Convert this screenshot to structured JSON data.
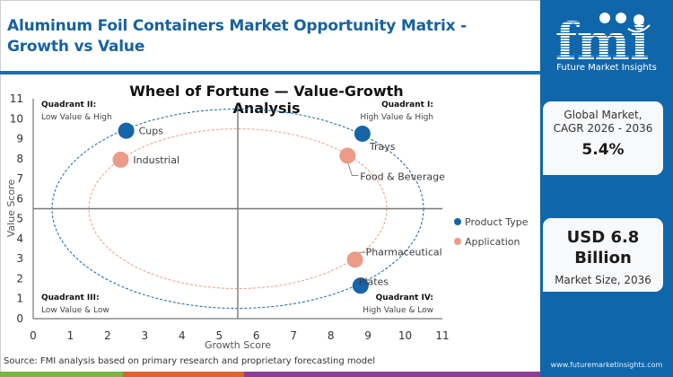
{
  "header": {
    "title": "Aluminum Foil Containers Market Opportunity Matrix - Growth vs Value"
  },
  "sidebar": {
    "logo_text": "Future Market Insights",
    "logo_mark": "fmi",
    "card1": {
      "label_line1": "Global Market,",
      "label_line2": "CAGR 2026 - 2036",
      "value": "5.4%"
    },
    "card2": {
      "value_line1": "USD 6.8",
      "value_line2": "Billion",
      "label": "Market Size, 2036"
    },
    "website": "www.futuremarketinsights.com"
  },
  "footer": {
    "source": "Source: FMI analysis based on primary research and proprietary forecasting model",
    "stripe_colors": [
      "#7cb342",
      "#e2622f",
      "#8e3d96"
    ]
  },
  "colors": {
    "product_type": "#1565a8",
    "application": "#eb9c86",
    "brand": "#0f66ab",
    "title": "#17629e"
  },
  "chart_data": {
    "type": "scatter",
    "title": "Wheel of Fortune — Value-Growth Analysis",
    "xlabel": "Growth Score",
    "ylabel": "Value Score",
    "xlim": [
      0,
      11
    ],
    "ylim": [
      0,
      11
    ],
    "x_ticks": [
      "0",
      "1",
      "2",
      "3",
      "4",
      "5",
      "6",
      "7",
      "8",
      "9",
      "10",
      "11"
    ],
    "y_ticks": [
      "0",
      "1",
      "2",
      "3",
      "4",
      "5",
      "6",
      "7",
      "8",
      "9",
      "10",
      "11"
    ],
    "grid": false,
    "dividers": {
      "x": 5.5,
      "y": 5.5
    },
    "quadrants": [
      {
        "name": "Quadrant I:",
        "desc": "High Value & High",
        "position": "top-right"
      },
      {
        "name": "Quadrant II:",
        "desc": "Low Value & High",
        "position": "top-left"
      },
      {
        "name": "Quadrant III:",
        "desc": "Low Value & Low",
        "position": "bottom-left"
      },
      {
        "name": "Quadrant IV:",
        "desc": "High Value & Low",
        "position": "bottom-right"
      }
    ],
    "legend": [
      {
        "label": "Product Type",
        "color": "#1565a8"
      },
      {
        "label": "Application",
        "color": "#eb9c86"
      }
    ],
    "legend_position": "right",
    "series": [
      {
        "name": "Product Type",
        "color": "#1565a8",
        "points": [
          {
            "label": "Cups",
            "x": 2.5,
            "y": 9.4
          },
          {
            "label": "Trays",
            "x": 8.85,
            "y": 9.25
          },
          {
            "label": "Plates",
            "x": 8.8,
            "y": 1.65
          }
        ]
      },
      {
        "name": "Application",
        "color": "#eb9c86",
        "points": [
          {
            "label": "Industrial",
            "x": 2.35,
            "y": 7.95
          },
          {
            "label": "Food & Beverage",
            "x": 8.45,
            "y": 8.15
          },
          {
            "label": "Pharmaceutical",
            "x": 8.65,
            "y": 2.95
          }
        ]
      }
    ],
    "annotations": [
      "Dashed elliptical orbit per series centered at (5.5, 5.5)"
    ]
  }
}
